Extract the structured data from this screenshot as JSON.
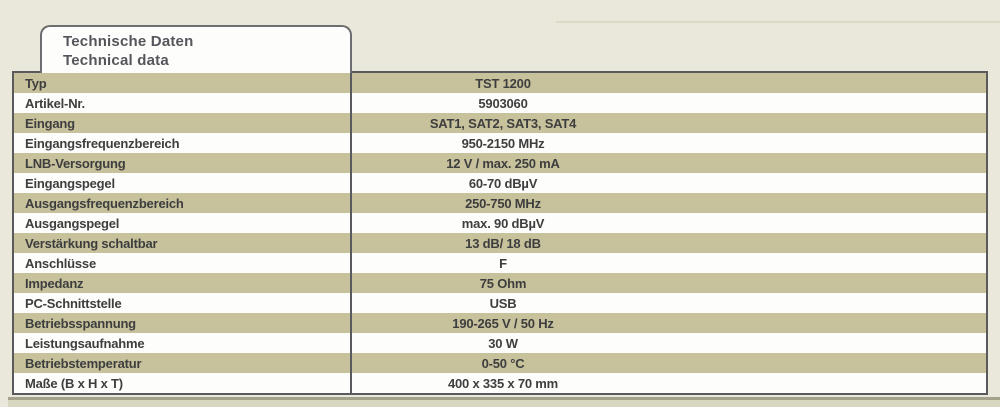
{
  "tab": {
    "title_de": "Technische Daten",
    "title_en": "Technical data"
  },
  "table": {
    "rows": [
      {
        "label": "Typ",
        "value": "TST 1200"
      },
      {
        "label": "Artikel-Nr.",
        "value": "5903060"
      },
      {
        "label": "Eingang",
        "value": "SAT1, SAT2, SAT3, SAT4"
      },
      {
        "label": "Eingangsfrequenzbereich",
        "value": "950-2150 MHz"
      },
      {
        "label": "LNB-Versorgung",
        "value": "12 V / max. 250 mA"
      },
      {
        "label": "Eingangspegel",
        "value": "60-70 dBµV"
      },
      {
        "label": "Ausgangsfrequenzbereich",
        "value": "250-750 MHz"
      },
      {
        "label": "Ausgangspegel",
        "value": "max. 90 dBµV"
      },
      {
        "label": "Verstärkung schaltbar",
        "value": "13 dB/ 18 dB"
      },
      {
        "label": "Anschlüsse",
        "value": "F"
      },
      {
        "label": "Impedanz",
        "value": "75 Ohm"
      },
      {
        "label": "PC-Schnittstelle",
        "value": "USB"
      },
      {
        "label": "Betriebsspannung",
        "value": "190-265 V / 50 Hz"
      },
      {
        "label": "Leistungsaufnahme",
        "value": "30 W"
      },
      {
        "label": "Betriebstemperatur",
        "value": "0-50 °C"
      },
      {
        "label": "Maße (B x H x T)",
        "value": "400 x 335 x 70 mm"
      }
    ]
  },
  "colors": {
    "page_background": "#eae7db",
    "row_tan": "#c7c19c",
    "row_white": "#fdfdfc",
    "table_border": "#595a5d",
    "text": "#3d3e3e",
    "tab_text": "#55565b",
    "bottom_band": "#d9d6c2"
  }
}
